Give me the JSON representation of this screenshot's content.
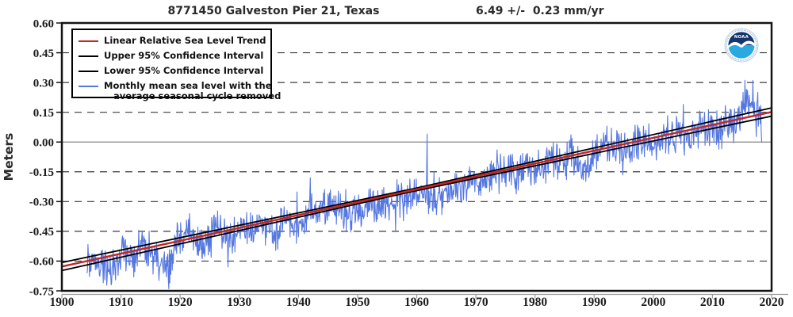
{
  "header": {
    "station_title": "8771450 Galveston Pier 21, Texas",
    "rate_text": "6.49 +/-  0.23 mm/yr"
  },
  "legend": {
    "items": [
      {
        "label": "Linear Relative Sea Level Trend",
        "color": "#c22626",
        "style": "thick"
      },
      {
        "label": "Upper 95% Confidence Interval",
        "color": "#000000",
        "style": "thick"
      },
      {
        "label": "Lower 95% Confidence Interval",
        "color": "#000000",
        "style": "thick"
      },
      {
        "label": "Monthly mean sea level with the",
        "label_line2": "average seasonal cycle removed",
        "color": "#5577e0",
        "style": "thin"
      }
    ]
  },
  "axes": {
    "y_label": "Meters",
    "y_range": [
      -0.75,
      0.6
    ],
    "x_range": [
      1900,
      2020
    ],
    "y_tick_values": [
      0.6,
      0.45,
      0.3,
      0.15,
      0.0,
      -0.15,
      -0.3,
      -0.45,
      -0.6,
      -0.75
    ],
    "y_tick_labels": [
      "0.60",
      "0.45",
      "0.30",
      "0.15",
      "0.00",
      "-0.15",
      "-0.30",
      "-0.45",
      "-0.60",
      "-0.75"
    ],
    "y_grid_dashed": [
      0.45,
      0.3,
      0.15,
      -0.15,
      -0.3,
      -0.45,
      -0.6
    ],
    "y_grid_solid": [
      0.0
    ],
    "x_tick_values": [
      1900,
      1910,
      1920,
      1930,
      1940,
      1950,
      1960,
      1970,
      1980,
      1990,
      2000,
      2010,
      2020
    ],
    "x_tick_labels": [
      "1900",
      "1910",
      "1920",
      "1930",
      "1940",
      "1950",
      "1960",
      "1970",
      "1980",
      "1990",
      "2000",
      "2010",
      "2020"
    ]
  },
  "colors": {
    "monthly_line": "#5577e0",
    "trend_line": "#c22626",
    "ci_line": "#000000",
    "grid_dashed": "#3a3a3a",
    "zero_line": "#868686",
    "frame": "#141414",
    "axis_gray": "#9a9a9a",
    "tick_text": "#1c1c1c",
    "logo_navy": "#15356b",
    "logo_cyan": "#2aa9e0"
  },
  "logo": {
    "text": "NOAA"
  },
  "chart_data": {
    "type": "line",
    "title": "8771450 Galveston Pier 21, Texas",
    "subtitle": "6.49 +/- 0.23 mm/yr",
    "xlabel": "",
    "ylabel": "Meters",
    "xlim": [
      1900,
      2020
    ],
    "ylim": [
      -0.75,
      0.6
    ],
    "grid": "dashed horizontal at 0.15 m intervals, solid at 0.00",
    "legend_position": "upper-left",
    "trend": {
      "name": "Linear Relative Sea Level Trend",
      "slope_mm_per_yr": 6.49,
      "uncertainty_mm_per_yr": 0.23,
      "slope_m_per_yr": 0.00649,
      "value_1900": -0.6275,
      "value_2020": 0.1513,
      "ci_pivot_year": 1959,
      "ci_base_offset_m": 0.0065,
      "ci_growth_m_per_yr": 0.000235
    },
    "monthly": {
      "name": "Monthly mean sea level with the average seasonal cycle removed",
      "start_year": 1904.25,
      "end_year": 2018.35,
      "typical_monthly_deviation_m": 0.05,
      "annual_means": [
        [
          1904,
          -0.61
        ],
        [
          1905,
          -0.57
        ],
        [
          1906,
          -0.62
        ],
        [
          1907,
          -0.6
        ],
        [
          1908,
          -0.66
        ],
        [
          1909,
          -0.63
        ],
        [
          1910,
          -0.55
        ],
        [
          1911,
          -0.57
        ],
        [
          1912,
          -0.6
        ],
        [
          1913,
          -0.55
        ],
        [
          1914,
          -0.53
        ],
        [
          1915,
          -0.56
        ],
        [
          1916,
          -0.58
        ],
        [
          1917,
          -0.63
        ],
        [
          1918,
          -0.65
        ],
        [
          1919,
          -0.52
        ],
        [
          1920,
          -0.5
        ],
        [
          1921,
          -0.47
        ],
        [
          1922,
          -0.46
        ],
        [
          1923,
          -0.5
        ],
        [
          1924,
          -0.52
        ],
        [
          1925,
          -0.48
        ],
        [
          1926,
          -0.44
        ],
        [
          1927,
          -0.46
        ],
        [
          1928,
          -0.48
        ],
        [
          1929,
          -0.46
        ],
        [
          1930,
          -0.47
        ],
        [
          1931,
          -0.44
        ],
        [
          1932,
          -0.46
        ],
        [
          1933,
          -0.41
        ],
        [
          1934,
          -0.44
        ],
        [
          1935,
          -0.43
        ],
        [
          1936,
          -0.45
        ],
        [
          1937,
          -0.42
        ],
        [
          1938,
          -0.4
        ],
        [
          1939,
          -0.42
        ],
        [
          1940,
          -0.44
        ],
        [
          1941,
          -0.36
        ],
        [
          1942,
          -0.33
        ],
        [
          1943,
          -0.38
        ],
        [
          1944,
          -0.36
        ],
        [
          1945,
          -0.34
        ],
        [
          1946,
          -0.33
        ],
        [
          1947,
          -0.35
        ],
        [
          1948,
          -0.38
        ],
        [
          1949,
          -0.36
        ],
        [
          1950,
          -0.33
        ],
        [
          1951,
          -0.36
        ],
        [
          1952,
          -0.34
        ],
        [
          1953,
          -0.31
        ],
        [
          1954,
          -0.32
        ],
        [
          1955,
          -0.3
        ],
        [
          1956,
          -0.32
        ],
        [
          1957,
          -0.28
        ],
        [
          1958,
          -0.27
        ],
        [
          1959,
          -0.28
        ],
        [
          1960,
          -0.26
        ],
        [
          1961,
          -0.22
        ],
        [
          1962,
          -0.28
        ],
        [
          1963,
          -0.3
        ],
        [
          1964,
          -0.28
        ],
        [
          1965,
          -0.26
        ],
        [
          1966,
          -0.24
        ],
        [
          1967,
          -0.25
        ],
        [
          1968,
          -0.2
        ],
        [
          1969,
          -0.21
        ],
        [
          1970,
          -0.22
        ],
        [
          1971,
          -0.2
        ],
        [
          1972,
          -0.17
        ],
        [
          1973,
          -0.14
        ],
        [
          1974,
          -0.15
        ],
        [
          1975,
          -0.13
        ],
        [
          1976,
          -0.16
        ],
        [
          1977,
          -0.17
        ],
        [
          1978,
          -0.14
        ],
        [
          1979,
          -0.12
        ],
        [
          1980,
          -0.15
        ],
        [
          1981,
          -0.12
        ],
        [
          1982,
          -0.13
        ],
        [
          1983,
          -0.08
        ],
        [
          1984,
          -0.11
        ],
        [
          1985,
          -0.1
        ],
        [
          1986,
          -0.07
        ],
        [
          1987,
          -0.09
        ],
        [
          1988,
          -0.11
        ],
        [
          1989,
          -0.1
        ],
        [
          1990,
          -0.07
        ],
        [
          1991,
          -0.04
        ],
        [
          1992,
          -0.02
        ],
        [
          1993,
          -0.03
        ],
        [
          1994,
          -0.02
        ],
        [
          1995,
          -0.04
        ],
        [
          1996,
          -0.06
        ],
        [
          1997,
          -0.02
        ],
        [
          1998,
          0.02
        ],
        [
          1999,
          -0.01
        ],
        [
          2000,
          -0.02
        ],
        [
          2001,
          0.02
        ],
        [
          2002,
          0.04
        ],
        [
          2003,
          0.03
        ],
        [
          2004,
          0.04
        ],
        [
          2005,
          0.05
        ],
        [
          2006,
          0.03
        ],
        [
          2007,
          0.06
        ],
        [
          2008,
          0.08
        ],
        [
          2009,
          0.06
        ],
        [
          2010,
          0.07
        ],
        [
          2011,
          0.04
        ],
        [
          2012,
          0.08
        ],
        [
          2013,
          0.09
        ],
        [
          2014,
          0.1
        ],
        [
          2015,
          0.15
        ],
        [
          2016,
          0.17
        ],
        [
          2017,
          0.16
        ],
        [
          2018,
          0.1
        ]
      ],
      "notable_extremes": [
        [
          1908.3,
          -0.72
        ],
        [
          1918.1,
          -0.74
        ],
        [
          1942.0,
          -0.18
        ],
        [
          1961.75,
          0.04
        ],
        [
          1973.6,
          -0.04
        ],
        [
          1983.7,
          -0.01
        ],
        [
          1992.2,
          0.08
        ],
        [
          2005.1,
          0.19
        ],
        [
          2008.7,
          0.15
        ],
        [
          2015.9,
          0.26
        ],
        [
          2016.8,
          0.31
        ],
        [
          2017.7,
          0.25
        ]
      ]
    }
  }
}
